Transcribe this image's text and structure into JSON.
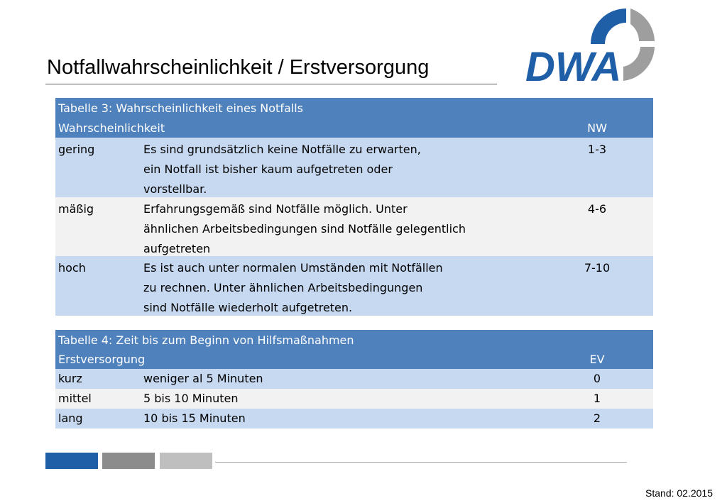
{
  "page": {
    "title": "Notfallwahrscheinlichkeit / Erstversorgung",
    "logo_text": "DWA",
    "stand": "Stand: 02.2015"
  },
  "colors": {
    "header_blue": "#4f81bd",
    "row_light_blue": "#c6d9f0",
    "row_grey": "#f2f2f2",
    "logo_blue": "#1f5fa8",
    "logo_grey": "#9e9e9e"
  },
  "table3": {
    "caption": "Tabelle 3: Wahrscheinlichkeit eines Notfalls",
    "col_label": "Wahrscheinlichkeit",
    "col_code": "NW",
    "rows": [
      {
        "level": "gering",
        "lines": [
          "Es sind grundsätzlich keine Notfälle zu erwarten,",
          "ein Notfall ist bisher kaum aufgetreten oder",
          "vorstellbar."
        ],
        "value": "1-3"
      },
      {
        "level": "mäßig",
        "lines": [
          "Erfahrungsgemäß sind Notfälle möglich. Unter",
          "ähnlichen Arbeitsbedingungen sind Notfälle gelegentlich",
          "aufgetreten"
        ],
        "value": "4-6"
      },
      {
        "level": "hoch",
        "lines": [
          "Es ist auch unter normalen Umständen mit Notfällen",
          "zu rechnen. Unter ähnlichen Arbeitsbedingungen",
          "sind Notfälle wiederholt aufgetreten."
        ],
        "value": "7-10"
      }
    ]
  },
  "table4": {
    "caption": "Tabelle 4: Zeit bis zum Beginn von Hilfsmaßnahmen",
    "col_label": "Erstversorgung",
    "col_code": "EV",
    "rows": [
      {
        "level": "kurz",
        "desc": "weniger al 5 Minuten",
        "value": "0"
      },
      {
        "level": "mittel",
        "desc": "5 bis 10 Minuten",
        "value": "1"
      },
      {
        "level": "lang",
        "desc": "10 bis 15  Minuten",
        "value": "2"
      }
    ]
  }
}
